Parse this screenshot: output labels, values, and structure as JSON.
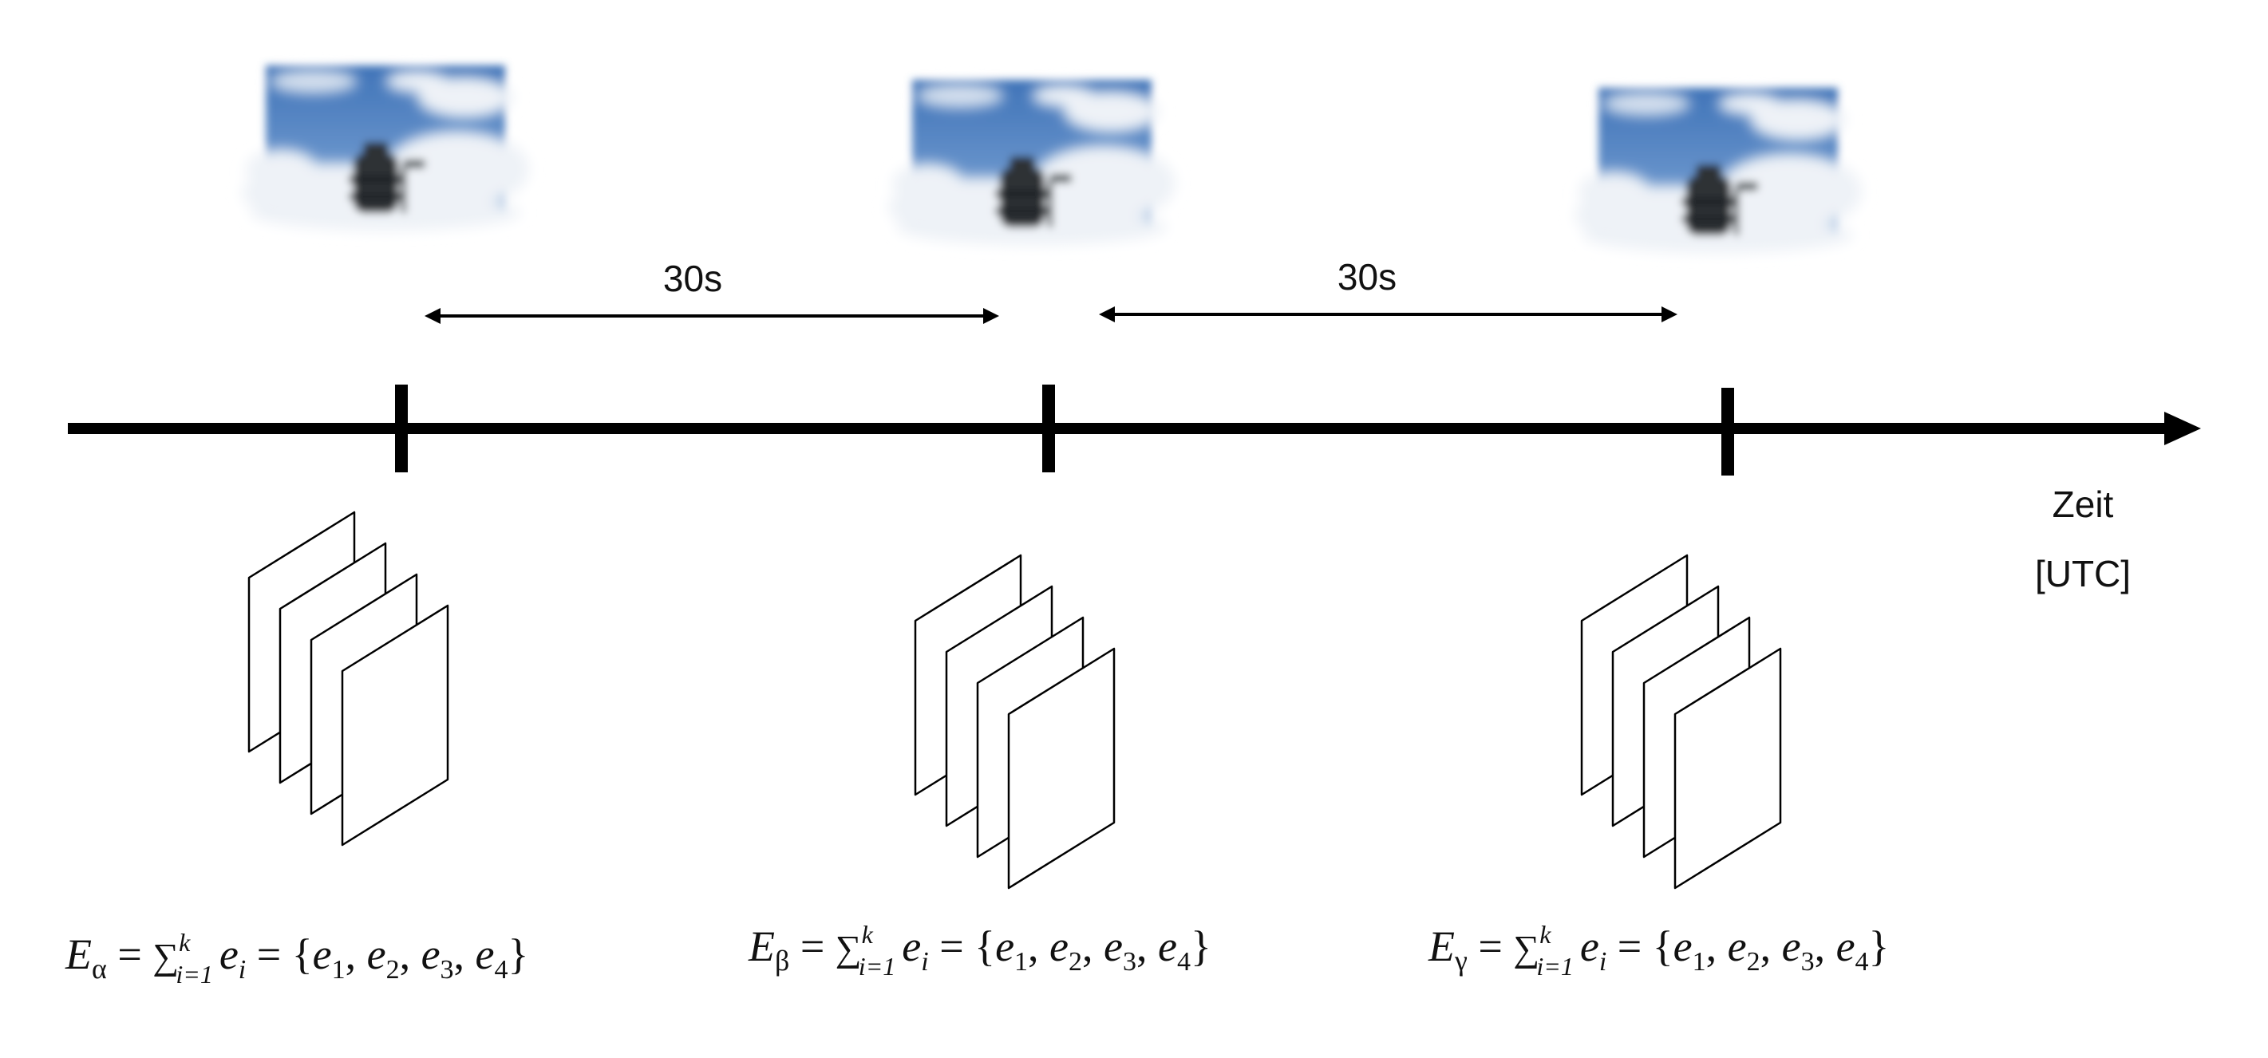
{
  "interval_labels": [
    "30s",
    "30s"
  ],
  "axis_label": {
    "line1": "Zeit",
    "line2": "[UTC]"
  },
  "photo_subject": "sky-camera-photo",
  "colors": {
    "axis": "#000000",
    "frame_stroke": "#000000",
    "sky": "#4a7fc1",
    "cloud": "#eef2f7",
    "device": "#2e3336"
  },
  "formulas": [
    {
      "E": "E",
      "sub": "α",
      "eq1": " = ",
      "sum": "∑",
      "sum_sub": "i=1",
      "sum_sup": "k",
      "e": "e",
      "e_sub": "i",
      "eq2": " = {",
      "items": [
        {
          "e": "e",
          "sub": "1",
          "sep": ", "
        },
        {
          "e": "e",
          "sub": "2",
          "sep": ", "
        },
        {
          "e": "e",
          "sub": "3",
          "sep": ", "
        },
        {
          "e": "e",
          "sub": "4",
          "sep": "}"
        }
      ]
    },
    {
      "E": "E",
      "sub": "β",
      "eq1": " = ",
      "sum": "∑",
      "sum_sub": "i=1",
      "sum_sup": "k",
      "e": "e",
      "e_sub": "i",
      "eq2": " = {",
      "items": [
        {
          "e": "e",
          "sub": "1",
          "sep": ", "
        },
        {
          "e": "e",
          "sub": "2",
          "sep": ", "
        },
        {
          "e": "e",
          "sub": "3",
          "sep": ", "
        },
        {
          "e": "e",
          "sub": "4",
          "sep": "}"
        }
      ]
    },
    {
      "E": "E",
      "sub": "γ",
      "eq1": " = ",
      "sum": "∑",
      "sum_sub": "i=1",
      "sum_sup": "k",
      "e": "e",
      "e_sub": "i",
      "eq2": " = {",
      "items": [
        {
          "e": "e",
          "sub": "1",
          "sep": ", "
        },
        {
          "e": "e",
          "sub": "2",
          "sep": ", "
        },
        {
          "e": "e",
          "sub": "3",
          "sep": ", "
        },
        {
          "e": "e",
          "sub": "4",
          "sep": "}"
        }
      ]
    }
  ]
}
